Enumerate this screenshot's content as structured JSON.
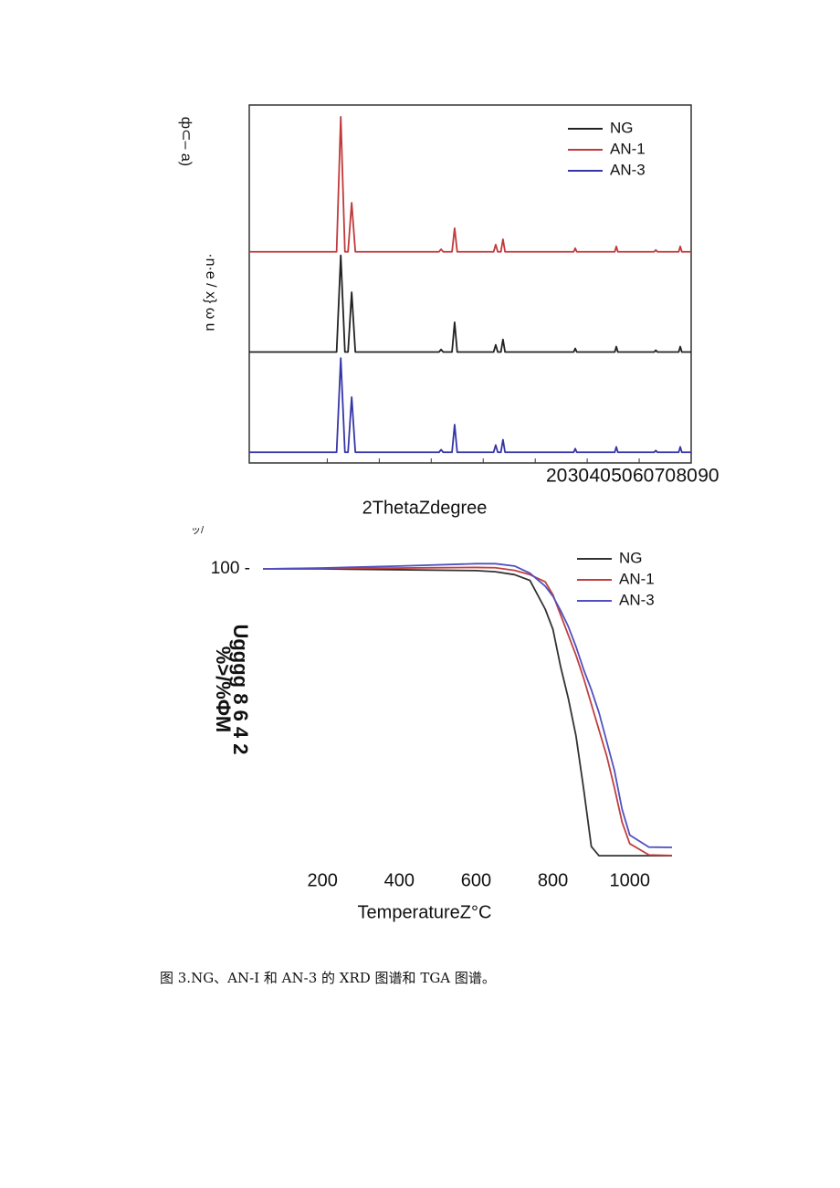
{
  "chart_data": [
    {
      "type": "line",
      "panel_label": "ф⊂– a)",
      "ylabel": "·n·e / x} ω u",
      "xlabel": "2ThetaZdegree",
      "x": [
        5,
        21.8,
        22.6,
        23.4,
        24.0,
        24.7,
        25.4,
        41.5,
        41.9,
        42.3,
        44.0,
        44.5,
        45.0,
        52.0,
        52.4,
        52.8,
        53.4,
        53.8,
        54.2,
        67.4,
        67.7,
        68.0,
        75.3,
        75.6,
        75.9,
        82.9,
        83.2,
        83.5,
        87.6,
        87.9,
        88.2,
        90
      ],
      "series": [
        {
          "name": "NG",
          "color": "#222222",
          "values": [
            31,
            31,
            58,
            31,
            31,
            47.7,
            31,
            31,
            31.7,
            31,
            31,
            39.3,
            31,
            31,
            33,
            31,
            31,
            34.5,
            31,
            31,
            32,
            31,
            31,
            32.5,
            31,
            31,
            31.5,
            31,
            31,
            32.5,
            31,
            31
          ]
        },
        {
          "name": "AN-1",
          "color": "#c0393b",
          "values": [
            59,
            59,
            96.7,
            59,
            59,
            72.7,
            59,
            59,
            59.7,
            59,
            59,
            65.6,
            59,
            59,
            61,
            59,
            59,
            62.5,
            59,
            59,
            60,
            59,
            59,
            60.5,
            59,
            59,
            59.5,
            59,
            59,
            60.5,
            59,
            59
          ]
        },
        {
          "name": "AN-3",
          "color": "#3535a8",
          "values": [
            3,
            3,
            29.3,
            3,
            3,
            18.4,
            3,
            3,
            3.7,
            3,
            3,
            10.7,
            3,
            3,
            5,
            3,
            3,
            6.5,
            3,
            3,
            4,
            3,
            3,
            4.5,
            3,
            3,
            3.5,
            3,
            3,
            4.5,
            3,
            3
          ]
        }
      ],
      "xlim": [
        5,
        90
      ],
      "ylim": [
        0,
        100
      ],
      "xticks": [
        20,
        30,
        40,
        50,
        60,
        70,
        80,
        90
      ],
      "frame": true,
      "legend": "upper right"
    },
    {
      "type": "line",
      "panel_label": "ッ/",
      "ylabel": "%>/%ΦM",
      "y_axis_text": "Ugggg 8 6 4 2",
      "xlabel": "TemperatureZ°C",
      "x": [
        45,
        200,
        400,
        600,
        650,
        700,
        740,
        780,
        800,
        820,
        840,
        860,
        880,
        900,
        920,
        940,
        960,
        980,
        1000,
        1050,
        1110
      ],
      "series": [
        {
          "name": "NG",
          "color": "#333333",
          "values": [
            100,
            100,
            99.7,
            99.4,
            99,
            98,
            96,
            86,
            79,
            66,
            55,
            42,
            23.5,
            3.5,
            0.3,
            0.3,
            0.3,
            0.3,
            0.3,
            0.3,
            0.3
          ]
        },
        {
          "name": "AN-1",
          "color": "#c04040",
          "values": [
            100,
            100.2,
            100.3,
            100.5,
            100.4,
            99.5,
            98,
            95.5,
            91,
            84,
            77,
            70,
            62,
            53,
            44,
            35,
            24,
            12,
            4.5,
            0.6,
            0.4
          ]
        },
        {
          "name": "AN-3",
          "color": "#5050c0",
          "values": [
            100,
            100.3,
            101,
            101.8,
            101.8,
            101,
            98.5,
            94,
            90.5,
            85.5,
            80,
            73,
            65,
            58,
            50,
            40,
            30,
            16.5,
            7.5,
            3.3,
            3.2
          ]
        }
      ],
      "xlim": [
        45,
        1110
      ],
      "ylim": [
        -0.6,
        107.3
      ],
      "xticks": [
        200,
        400,
        600,
        800,
        1000
      ],
      "yticks": [
        {
          "value": 100,
          "label": "100 -"
        }
      ],
      "frame": false,
      "legend": "upper right"
    }
  ],
  "caption": "图 3.NG、AN-I 和 AN-3 的 XRD 图谱和 TGA 图谱。"
}
